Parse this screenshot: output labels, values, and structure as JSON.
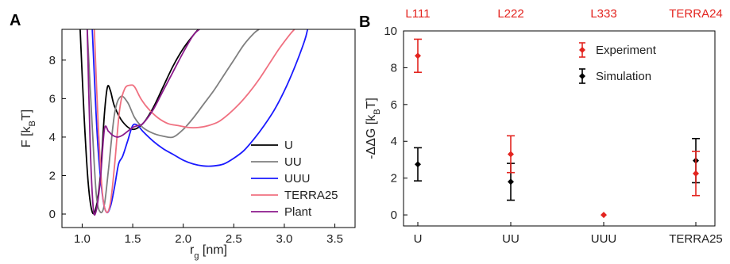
{
  "panels": {
    "a": {
      "letter": "A"
    },
    "b": {
      "letter": "B"
    }
  },
  "chart_data": [
    {
      "type": "line",
      "panel": "A",
      "xlabel": "r_g [nm]",
      "ylabel": "F [k_BT]",
      "xlim": [
        0.8,
        3.7
      ],
      "ylim": [
        -0.7,
        9.6
      ],
      "xticks": [
        "1.0",
        "1.5",
        "2.0",
        "2.5",
        "3.0",
        "3.5"
      ],
      "xtick_values": [
        1.0,
        1.5,
        2.0,
        2.5,
        3.0,
        3.5
      ],
      "yticks": [
        "0",
        "2",
        "4",
        "6",
        "8"
      ],
      "ytick_values": [
        0,
        2,
        4,
        6,
        8
      ],
      "legend_position": "bottom-right",
      "series": [
        {
          "name": "U",
          "color": "#000000",
          "x": [
            0.98,
            1.02,
            1.06,
            1.1,
            1.14,
            1.18,
            1.22,
            1.25,
            1.28,
            1.32,
            1.4,
            1.5,
            1.6,
            1.7,
            1.8,
            1.9,
            2.0,
            2.1,
            2.15
          ],
          "y": [
            9.6,
            5.0,
            1.6,
            0.1,
            0.4,
            2.0,
            5.2,
            6.6,
            6.4,
            5.6,
            4.8,
            4.4,
            4.7,
            5.5,
            6.6,
            7.7,
            8.6,
            9.3,
            9.6
          ]
        },
        {
          "name": "UU",
          "color": "#7f7f7f",
          "x": [
            1.05,
            1.1,
            1.14,
            1.18,
            1.22,
            1.26,
            1.32,
            1.38,
            1.45,
            1.52,
            1.6,
            1.7,
            1.8,
            1.9,
            2.0,
            2.1,
            2.2,
            2.3,
            2.4,
            2.5,
            2.6,
            2.7,
            2.75
          ],
          "y": [
            9.6,
            4.5,
            1.0,
            0.1,
            0.5,
            2.3,
            5.2,
            6.1,
            5.8,
            5.0,
            4.5,
            4.2,
            4.05,
            4.0,
            4.4,
            5.0,
            5.7,
            6.4,
            7.2,
            8.0,
            8.8,
            9.4,
            9.6
          ]
        },
        {
          "name": "UUU",
          "color": "#1a1aff",
          "x": [
            1.1,
            1.15,
            1.2,
            1.24,
            1.28,
            1.32,
            1.36,
            1.4,
            1.45,
            1.5,
            1.55,
            1.6,
            1.7,
            1.8,
            1.9,
            2.0,
            2.1,
            2.2,
            2.3,
            2.4,
            2.5,
            2.6,
            2.7,
            2.8,
            2.9,
            3.0,
            3.1,
            3.2,
            3.23
          ],
          "y": [
            9.6,
            4.0,
            1.0,
            0.1,
            0.4,
            1.4,
            2.6,
            3.0,
            3.8,
            4.6,
            4.6,
            4.3,
            3.8,
            3.4,
            3.1,
            2.8,
            2.6,
            2.5,
            2.5,
            2.6,
            2.9,
            3.3,
            3.9,
            4.6,
            5.4,
            6.4,
            7.6,
            9.0,
            9.6
          ]
        },
        {
          "name": "TERRA25",
          "color": "#f07080",
          "x": [
            1.12,
            1.16,
            1.2,
            1.24,
            1.28,
            1.32,
            1.37,
            1.42,
            1.48,
            1.52,
            1.58,
            1.65,
            1.75,
            1.85,
            1.95,
            2.05,
            2.15,
            2.25,
            2.35,
            2.45,
            2.55,
            2.65,
            2.75,
            2.85,
            2.95,
            3.05,
            3.1
          ],
          "y": [
            9.6,
            4.5,
            1.1,
            0.1,
            0.6,
            2.5,
            5.4,
            6.5,
            6.7,
            6.6,
            6.0,
            5.5,
            5.0,
            4.7,
            4.6,
            4.5,
            4.5,
            4.6,
            4.8,
            5.2,
            5.7,
            6.3,
            7.0,
            7.8,
            8.6,
            9.3,
            9.6
          ]
        },
        {
          "name": "Plant",
          "color": "#8b1a8b",
          "x": [
            1.05,
            1.08,
            1.11,
            1.14,
            1.18,
            1.22,
            1.26,
            1.3,
            1.35,
            1.4,
            1.45,
            1.5,
            1.55,
            1.6,
            1.7,
            1.8,
            1.9,
            2.0,
            2.1,
            2.16
          ],
          "y": [
            9.6,
            3.5,
            0.3,
            0.2,
            1.8,
            4.4,
            4.3,
            4.1,
            4.0,
            4.1,
            4.3,
            4.5,
            4.6,
            4.7,
            5.4,
            6.4,
            7.4,
            8.4,
            9.3,
            9.6
          ]
        }
      ]
    },
    {
      "type": "scatter",
      "panel": "B",
      "ylabel": "-ΔΔG [k_BT]",
      "categories": [
        "U",
        "UU",
        "UUU",
        "TERRA25"
      ],
      "top_labels": [
        "L111",
        "L222",
        "L333",
        "TERRA24"
      ],
      "ylim": [
        -0.6,
        10
      ],
      "yticks": [
        "0",
        "2",
        "4",
        "6",
        "8",
        "10"
      ],
      "ytick_values": [
        0,
        2,
        4,
        6,
        8,
        10
      ],
      "legend_position": "top-right",
      "series": [
        {
          "name": "Experiment",
          "color": "#e3241f",
          "values": [
            8.65,
            3.3,
            0.0,
            2.25
          ],
          "err_low": [
            7.75,
            2.3,
            null,
            1.05
          ],
          "err_high": [
            9.55,
            4.3,
            null,
            3.45
          ]
        },
        {
          "name": "Simulation",
          "color": "#000000",
          "values": [
            2.75,
            1.8,
            null,
            2.95
          ],
          "err_low": [
            1.85,
            0.8,
            null,
            1.75
          ],
          "err_high": [
            3.65,
            2.8,
            null,
            4.15
          ]
        }
      ]
    }
  ]
}
